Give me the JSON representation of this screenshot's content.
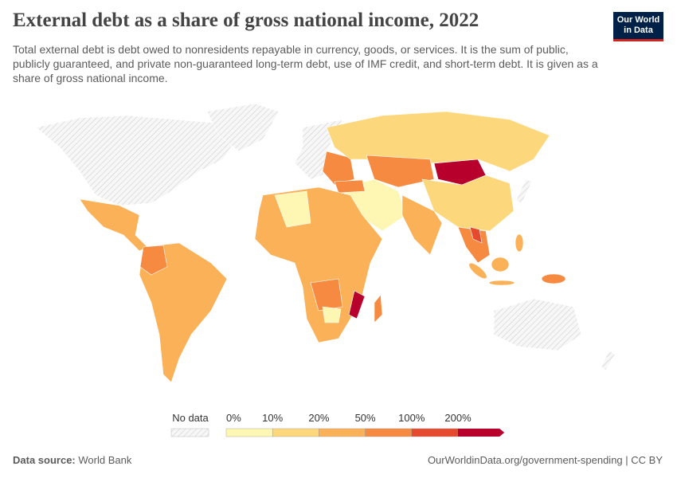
{
  "header": {
    "title": "External debt as a share of gross national income, 2022",
    "subtitle": "Total external debt is debt owed to nonresidents repayable in currency, goods, or services. It is the sum of public, publicly guaranteed, and private non-guaranteed long-term debt, use of IMF credit, and short-term debt. It is given as a share of gross national income.",
    "logo": [
      "Our World",
      "in Data"
    ]
  },
  "legend": {
    "no_data": "No data",
    "labels": [
      "0%",
      "10%",
      "20%",
      "50%",
      "100%",
      "200%"
    ],
    "colors": [
      "#fef7b3",
      "#fdd77b",
      "#fbb157",
      "#f68a40",
      "#e5492e",
      "#b8002d"
    ]
  },
  "footer": {
    "source_label": "Data source:",
    "source": "World Bank",
    "url": "OurWorldinData.org/government-spending | CC BY"
  }
}
